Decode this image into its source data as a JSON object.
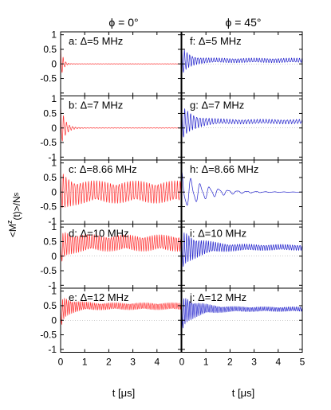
{
  "figure": {
    "col_titles": [
      "ϕ = 0°",
      "ϕ = 45°"
    ],
    "ylabel": "<M^z(t)>/N_s",
    "xlabel": "t [μs]"
  },
  "chart_data": {
    "type": "line",
    "layout": "grid 5 rows x 2 columns",
    "shared_axes": true,
    "xlim": [
      0,
      5
    ],
    "x_ticks_left": [
      0,
      1,
      2,
      3,
      4
    ],
    "x_ticks_right": [
      0,
      1,
      2,
      3,
      4,
      5
    ],
    "ylim": [
      -1.1,
      1.1
    ],
    "y_ticks": [
      -1,
      -0.5,
      0,
      0.5,
      1
    ],
    "y_tick_labels_top": [
      "-0.5",
      "0",
      "0.5",
      "1"
    ],
    "y_tick_labels_other": [
      "-1",
      "-0.5",
      "0",
      "0.5",
      "1"
    ],
    "xlabel": "t [μs]",
    "ylabel": "<M^z(t)>/N_s",
    "colors": {
      "phi0": "#ff3333",
      "phi45": "#2222cc"
    },
    "panels": [
      {
        "label": "a: Δ=5 MHz",
        "col": 0,
        "row": 0,
        "color": "#ff3333",
        "steady": 0.0,
        "init_amp": 0.75,
        "tau": 0.09,
        "late_amp": 0.01,
        "freq": 9.0
      },
      {
        "label": "f: Δ=5 MHz",
        "col": 1,
        "row": 0,
        "color": "#2222cc",
        "steady": 0.12,
        "init_amp": 0.55,
        "tau": 0.3,
        "late_amp": 0.08,
        "freq": 9.0
      },
      {
        "label": "b: Δ=7 MHz",
        "col": 0,
        "row": 1,
        "color": "#ff3333",
        "steady": 0.0,
        "init_amp": 0.85,
        "tau": 0.18,
        "late_amp": 0.01,
        "freq": 8.0
      },
      {
        "label": "g: Δ=7 MHz",
        "col": 1,
        "row": 1,
        "color": "#2222cc",
        "steady": 0.22,
        "init_amp": 0.65,
        "tau": 0.45,
        "late_amp": 0.08,
        "freq": 8.0
      },
      {
        "label": "c: Δ=8.66 MHz",
        "col": 0,
        "row": 2,
        "color": "#ff3333",
        "steady": 0.0,
        "init_amp": 0.75,
        "tau": 0.35,
        "late_amp": 0.38,
        "freq": 8.66
      },
      {
        "label": "h: Δ=8.66 MHz",
        "col": 1,
        "row": 2,
        "color": "#2222cc",
        "steady": 0.0,
        "init_amp": 0.75,
        "tau": 0.9,
        "late_amp": 0.0,
        "freq": 2.6
      },
      {
        "label": "d: Δ=10 MHz",
        "col": 0,
        "row": 3,
        "color": "#ff3333",
        "steady": 0.45,
        "init_amp": 0.55,
        "tau": 0.4,
        "late_amp": 0.28,
        "freq": 10.0
      },
      {
        "label": "i: Δ=10 MHz",
        "col": 1,
        "row": 3,
        "color": "#2222cc",
        "steady": 0.3,
        "init_amp": 0.7,
        "tau": 0.7,
        "late_amp": 0.1,
        "freq": 10.0
      },
      {
        "label": "e: Δ=12 MHz",
        "col": 0,
        "row": 4,
        "color": "#ff3333",
        "steady": 0.48,
        "init_amp": 0.5,
        "tau": 0.4,
        "late_amp": 0.12,
        "freq": 12.0
      },
      {
        "label": "j: Δ=12 MHz",
        "col": 1,
        "row": 4,
        "color": "#2222cc",
        "steady": 0.38,
        "init_amp": 0.6,
        "tau": 0.6,
        "late_amp": 0.08,
        "freq": 12.0
      }
    ]
  }
}
